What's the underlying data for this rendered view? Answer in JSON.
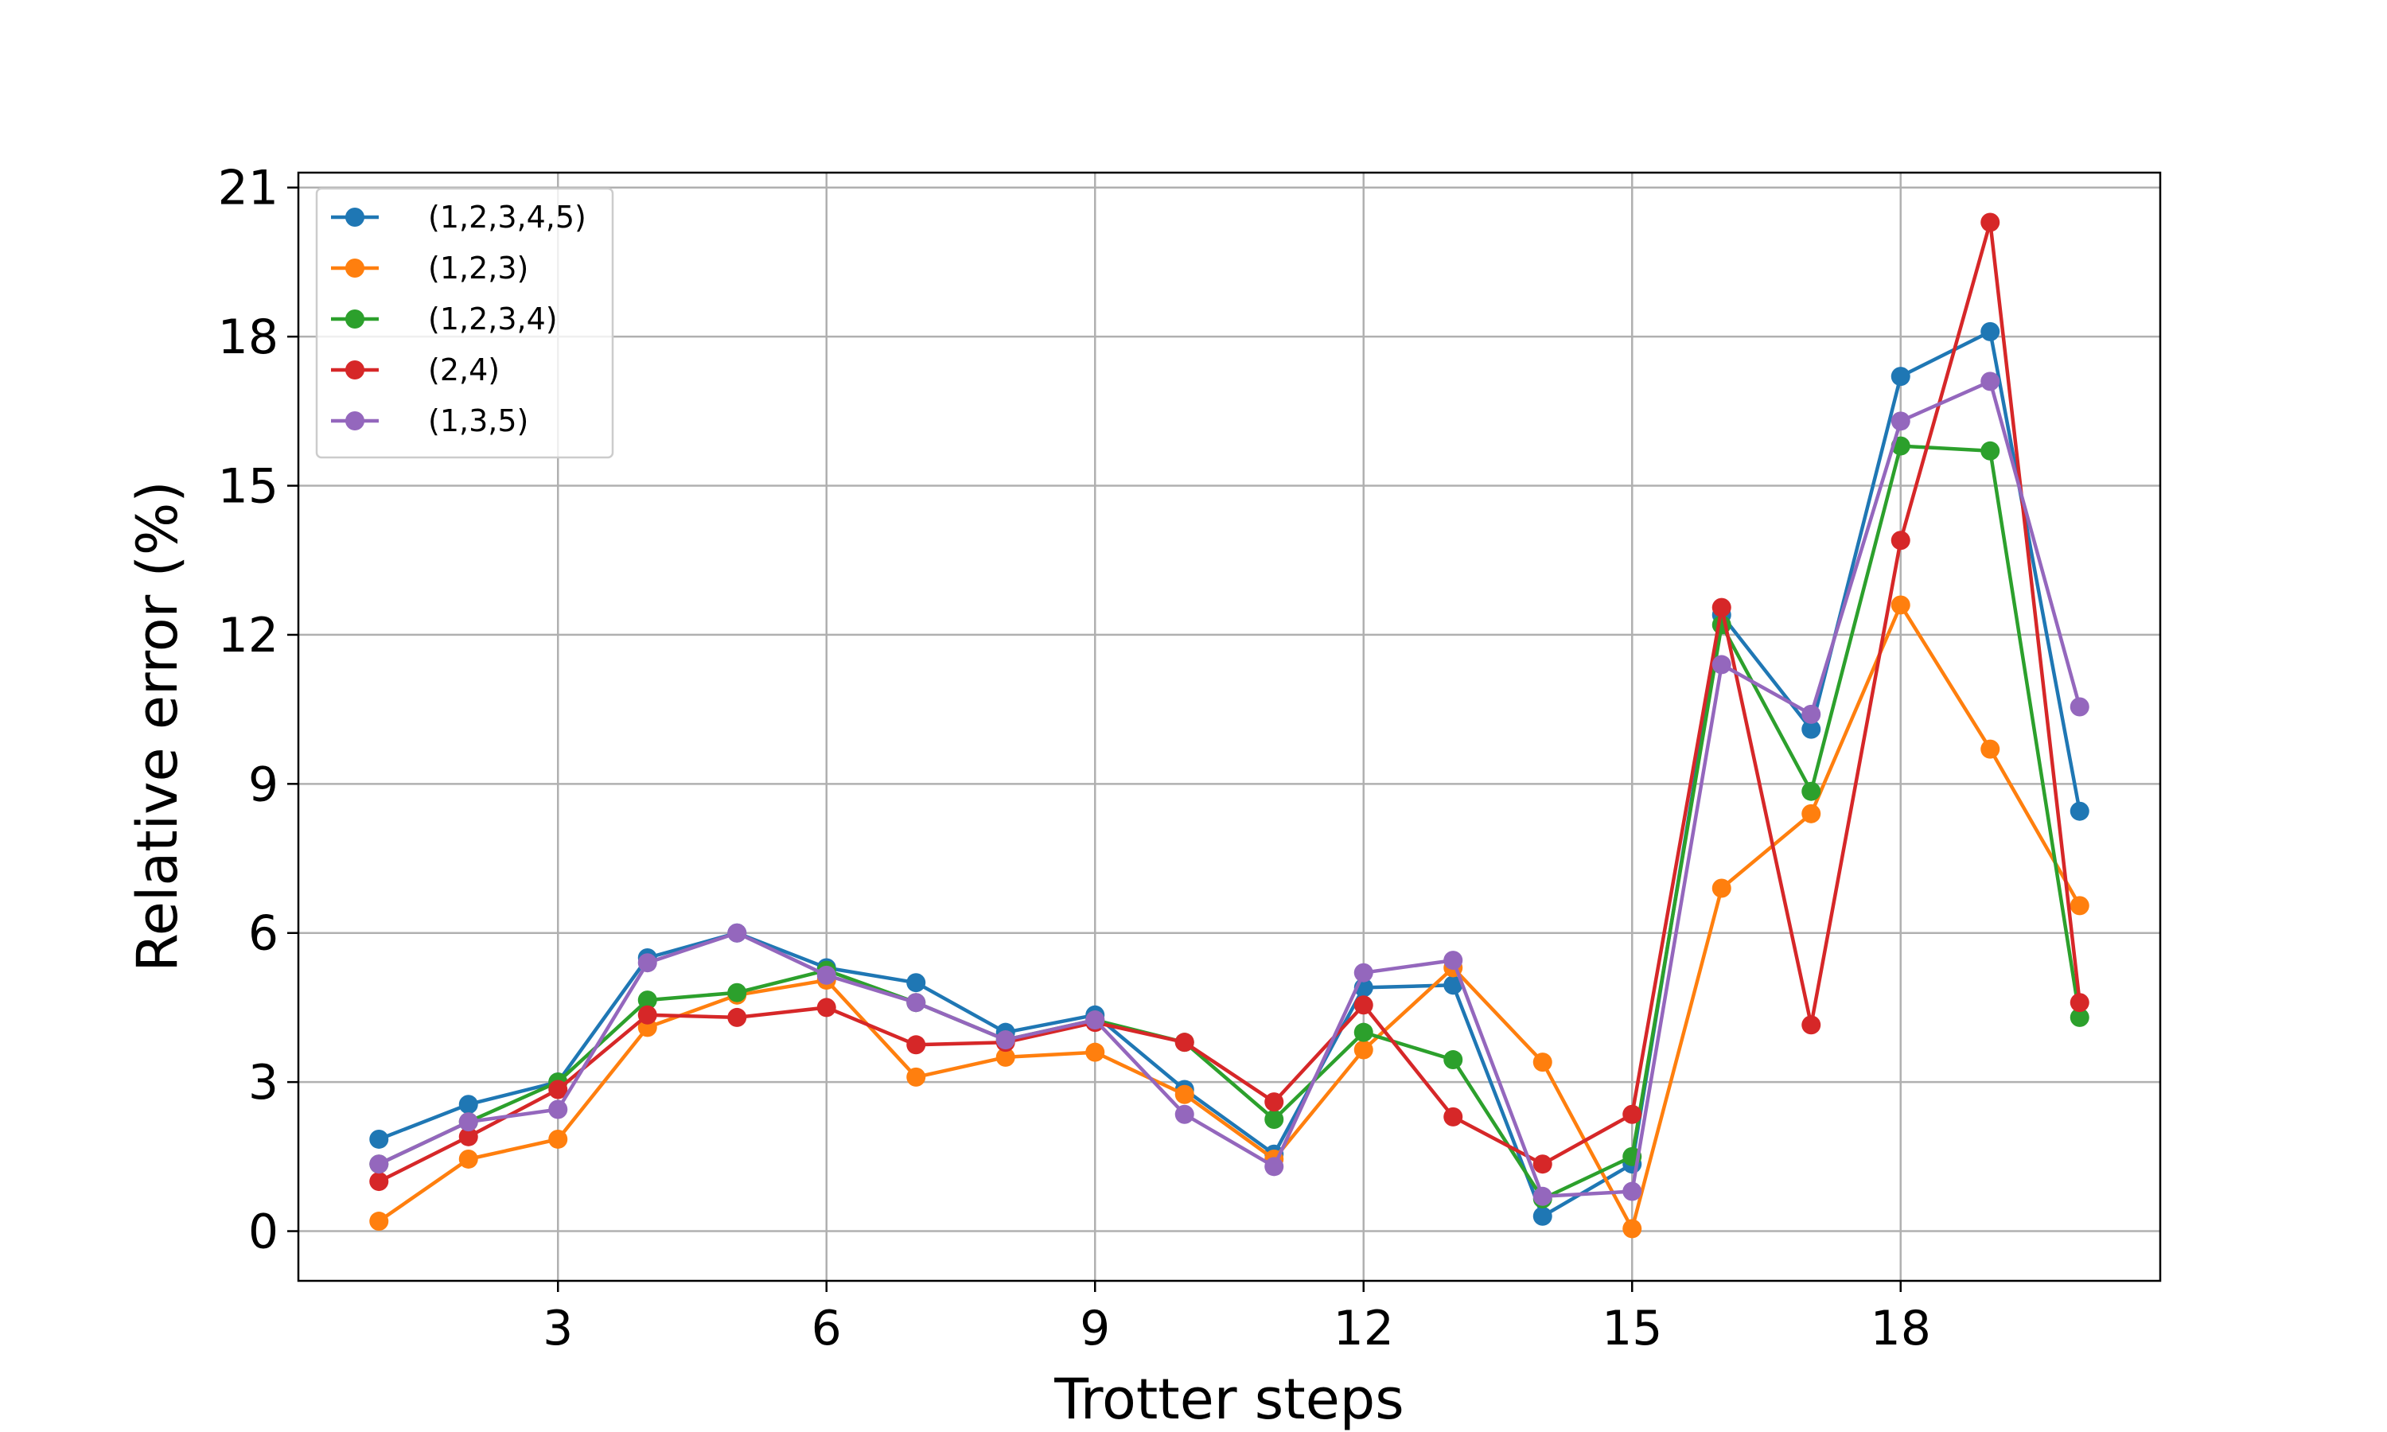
{
  "chart_data": {
    "type": "line",
    "title": "",
    "xlabel": "Trotter steps",
    "ylabel": "Relative error (%)",
    "xlim": [
      0.1,
      20.9
    ],
    "ylim": [
      -1.0,
      21.3
    ],
    "xticks": [
      3,
      6,
      9,
      12,
      15,
      18
    ],
    "yticks": [
      0,
      3,
      6,
      9,
      12,
      15,
      18,
      21
    ],
    "grid": true,
    "legend_position": "top-left",
    "x": [
      1,
      2,
      3,
      4,
      5,
      6,
      7,
      8,
      9,
      10,
      11,
      12,
      13,
      14,
      15,
      16,
      17,
      18,
      19,
      20
    ],
    "series": [
      {
        "name": "(1,2,3,4,5)",
        "color": "#1f77b4",
        "values": [
          1.85,
          2.55,
          3.0,
          5.5,
          6.0,
          5.3,
          5.0,
          4.0,
          4.35,
          2.85,
          1.55,
          4.9,
          4.95,
          0.3,
          1.35,
          12.4,
          10.1,
          17.2,
          18.1,
          8.45
        ]
      },
      {
        "name": "(1,2,3)",
        "color": "#ff7f0e",
        "values": [
          0.2,
          1.45,
          1.85,
          4.1,
          4.75,
          5.05,
          3.1,
          3.5,
          3.6,
          2.75,
          1.45,
          3.65,
          5.3,
          3.4,
          0.05,
          6.9,
          8.4,
          12.6,
          9.7,
          6.55
        ]
      },
      {
        "name": "(1,2,3,4)",
        "color": "#2ca02c",
        "values": [
          1.35,
          2.2,
          3.0,
          4.65,
          4.8,
          5.25,
          4.6,
          3.85,
          4.25,
          3.8,
          2.25,
          4.0,
          3.45,
          0.65,
          1.5,
          12.2,
          8.85,
          15.8,
          15.7,
          4.3
        ]
      },
      {
        "name": "(2,4)",
        "color": "#d62728",
        "values": [
          1.0,
          1.9,
          2.85,
          4.35,
          4.3,
          4.5,
          3.75,
          3.8,
          4.2,
          3.8,
          2.6,
          4.55,
          2.3,
          1.35,
          2.35,
          12.55,
          4.15,
          13.9,
          20.3,
          4.6
        ]
      },
      {
        "name": "(1,3,5)",
        "color": "#9467bd",
        "values": [
          1.35,
          2.2,
          2.45,
          5.4,
          6.0,
          5.15,
          4.6,
          3.85,
          4.25,
          2.35,
          1.3,
          5.2,
          5.45,
          0.7,
          0.8,
          11.4,
          10.4,
          16.3,
          17.1,
          10.55
        ]
      }
    ]
  }
}
